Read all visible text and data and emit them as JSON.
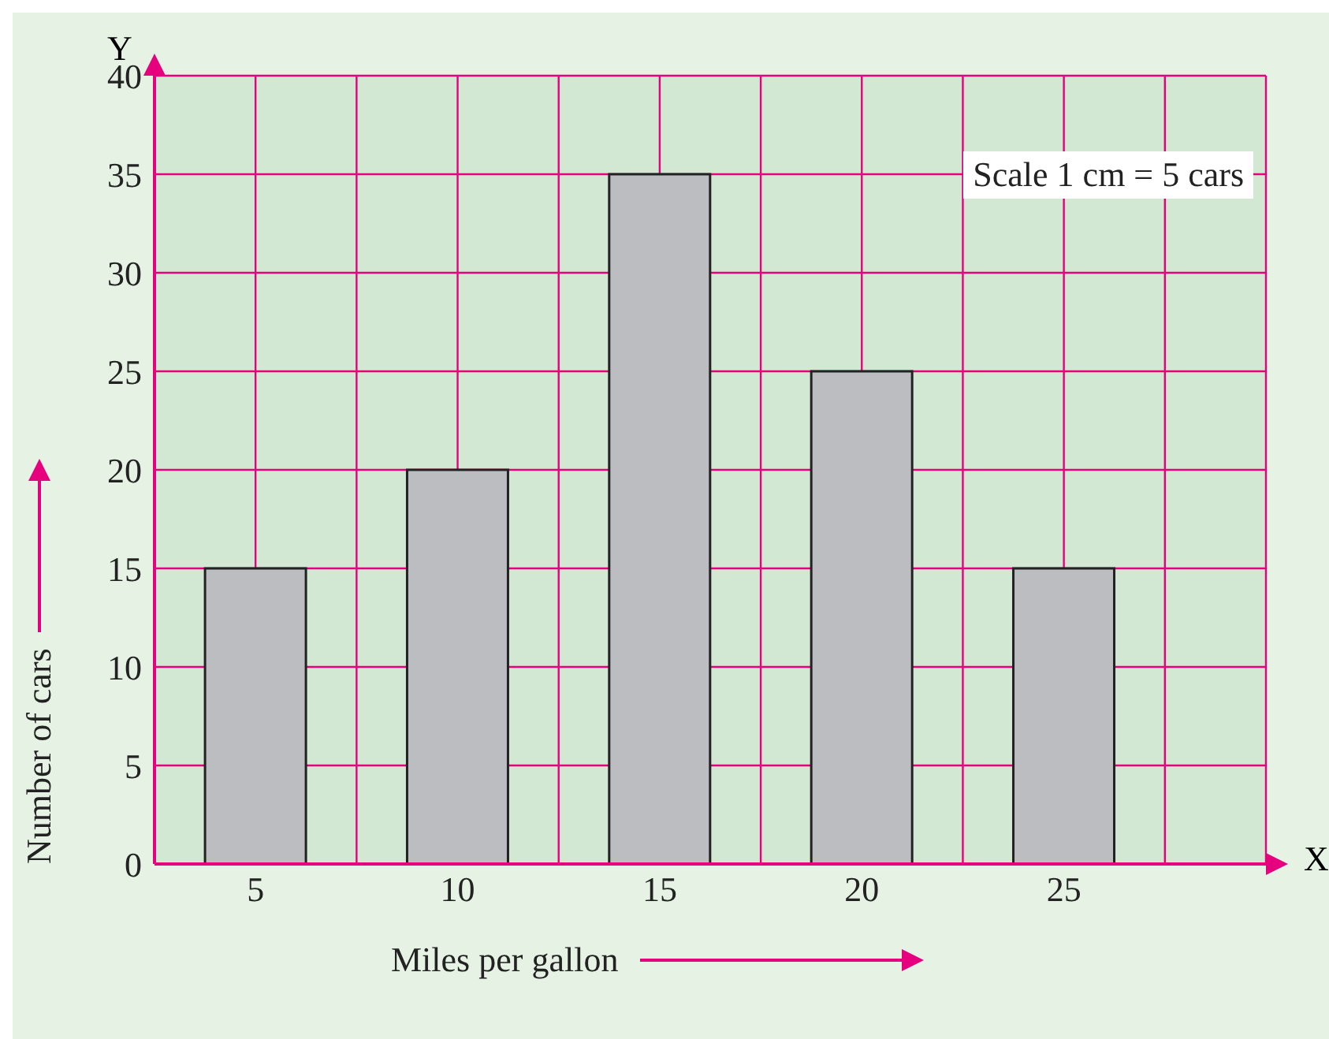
{
  "chart_data": {
    "type": "bar",
    "xlabel": "Miles per gallon",
    "ylabel": "Number of cars",
    "categories": [
      "5",
      "10",
      "15",
      "20",
      "25"
    ],
    "values": [
      15,
      20,
      35,
      25,
      15
    ],
    "color": "#bcbdc1",
    "ylim": [
      0,
      40
    ],
    "yticks": [
      0,
      5,
      10,
      15,
      20,
      25,
      30,
      35,
      40
    ],
    "grid": true,
    "annotations": [
      "Scale 1 cm = 5 cars",
      "X",
      "Y"
    ]
  }
}
